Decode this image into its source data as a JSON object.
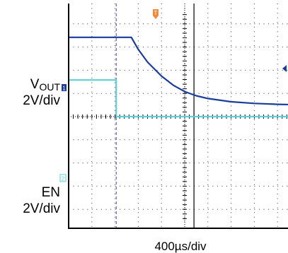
{
  "chart_data": {
    "type": "line",
    "title": "",
    "grid": true,
    "divisions": {
      "horizontal": 10,
      "vertical": 8
    },
    "xlabel": "400µs/div",
    "time_per_div_us": 400,
    "xlim_div": [
      0,
      10
    ],
    "trigger_time_div": 2.05,
    "cursor_time_div": 5.4,
    "channels": [
      {
        "name": "VOUT",
        "name_main": "V",
        "name_sub": "OUT",
        "scale_label": "2V/div",
        "marker": "1",
        "color": "#1a3d9a",
        "marker_color": "#1a3d9a",
        "ground_div": 1.25,
        "x_div": [
          0.0,
          2.55,
          2.7,
          3.0,
          3.4,
          4.0,
          4.5,
          5.0,
          5.5,
          6.0,
          7.0,
          8.0,
          9.0,
          10.0
        ],
        "y_div": [
          3.42,
          3.42,
          3.42,
          2.9,
          2.35,
          1.75,
          1.36,
          1.08,
          0.9,
          0.78,
          0.64,
          0.57,
          0.53,
          0.51
        ]
      },
      {
        "name": "EN",
        "scale_label": "2V/div",
        "marker": "2",
        "color": "#5ecfd6",
        "marker_color": "#5ecfd6",
        "ground_div": -2.65,
        "x_div": [
          0.0,
          2.05,
          2.05,
          10.0
        ],
        "y_div": [
          1.58,
          1.58,
          0.0,
          0.0
        ]
      }
    ],
    "trigger_marker": {
      "label": "T",
      "color": "#f08a3a"
    },
    "trigger_level_marker": {
      "color": "#1a3d9a"
    }
  }
}
